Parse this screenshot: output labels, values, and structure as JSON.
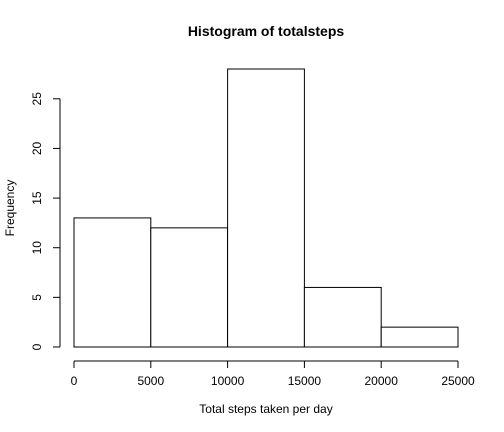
{
  "chart_data": {
    "type": "bar",
    "title": "Histogram of totalsteps",
    "xlabel": "Total steps taken per day",
    "ylabel": "Frequency",
    "bins": [
      {
        "start": 0,
        "end": 5000,
        "count": 13
      },
      {
        "start": 5000,
        "end": 10000,
        "count": 12
      },
      {
        "start": 10000,
        "end": 15000,
        "count": 28
      },
      {
        "start": 15000,
        "end": 20000,
        "count": 6
      },
      {
        "start": 20000,
        "end": 25000,
        "count": 2
      }
    ],
    "xlim": [
      0,
      25000
    ],
    "ylim": [
      0,
      28
    ],
    "xticks": [
      0,
      5000,
      10000,
      15000,
      20000,
      25000
    ],
    "yticks": [
      0,
      5,
      10,
      15,
      20,
      25
    ],
    "grid": false,
    "bar_fill": "#ffffff",
    "bar_stroke": "#000000"
  }
}
